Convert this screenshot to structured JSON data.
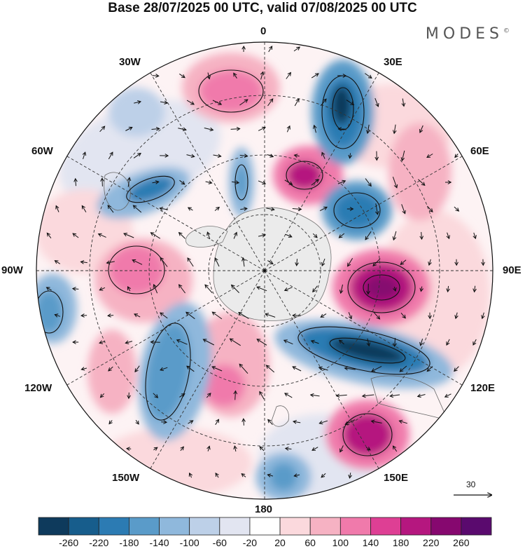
{
  "title": "Base 28/07/2025 00 UTC, valid 07/08/2025 00 UTC",
  "brand": "MODES",
  "brand_mark": "©",
  "longitude_labels": {
    "lon_0": "0",
    "lon_30e": "30E",
    "lon_60e": "60E",
    "lon_90e": "90E",
    "lon_120e": "120E",
    "lon_150e": "150E",
    "lon_180": "180",
    "lon_150w": "150W",
    "lon_120w": "120W",
    "lon_90w": "90W",
    "lon_60w": "60W",
    "lon_30w": "30W"
  },
  "vector_reference": {
    "value": "30"
  },
  "colorbar": {
    "ticks": [
      "-260",
      "-220",
      "-180",
      "-140",
      "-100",
      "-60",
      "-20",
      "20",
      "60",
      "100",
      "140",
      "180",
      "220",
      "260"
    ],
    "colors": [
      "#0e3a5c",
      "#175d8c",
      "#2c7bb3",
      "#5a9bc9",
      "#8fb8dc",
      "#bdd0e8",
      "#e2e5f1",
      "#ffffff",
      "#fbd9dd",
      "#f6b2c3",
      "#f07aab",
      "#de3f94",
      "#b5177f",
      "#86086f",
      "#5a0a6e"
    ]
  },
  "colors": {
    "background": "#ffffff",
    "land": "#ebebeb",
    "negative_anomaly": "#2c7bb3",
    "positive_anomaly": "#de3f94"
  }
}
